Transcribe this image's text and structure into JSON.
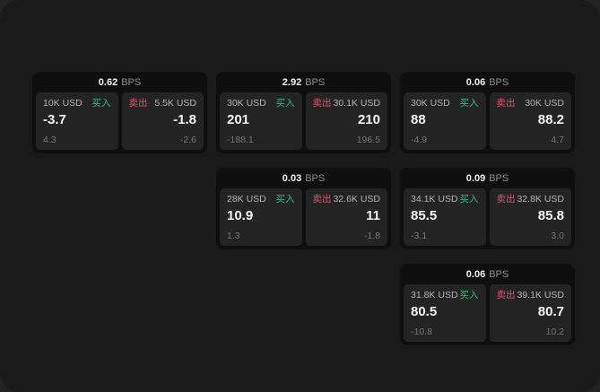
{
  "labels": {
    "buy": "买入",
    "sell": "卖出",
    "bps_suffix": "BPS"
  },
  "colors": {
    "buy": "#2ebd85",
    "sell": "#d8566f",
    "value_text": "#f5f5f5",
    "bps_text": "#8c8c8c",
    "amount_text": "#b3b3b3",
    "muted_text": "#757575",
    "card_bg": "#0f0f0f",
    "panel_bg": "#242424",
    "window_bg": "#1a1a1a",
    "backdrop": "#242424"
  },
  "cards": [
    {
      "row": 1,
      "col": 1,
      "bps": "0.62",
      "buy": {
        "amount": "10K USD",
        "value": "-3.7",
        "sub": "4.3"
      },
      "sell": {
        "amount": "5.5K USD",
        "value": "-1.8",
        "sub": "-2.6"
      }
    },
    {
      "row": 1,
      "col": 2,
      "bps": "2.92",
      "buy": {
        "amount": "30K USD",
        "value": "201",
        "sub": "-188.1"
      },
      "sell": {
        "amount": "30.1K USD",
        "value": "210",
        "sub": "196.5"
      }
    },
    {
      "row": 1,
      "col": 3,
      "bps": "0.06",
      "buy": {
        "amount": "30K USD",
        "value": "88",
        "sub": "-4.9"
      },
      "sell": {
        "amount": "30K USD",
        "value": "88.2",
        "sub": "4.7"
      }
    },
    {
      "row": 2,
      "col": 2,
      "bps": "0.03",
      "buy": {
        "amount": "28K USD",
        "value": "10.9",
        "sub": "1.3"
      },
      "sell": {
        "amount": "32.6K USD",
        "value": "11",
        "sub": "-1.8"
      }
    },
    {
      "row": 2,
      "col": 3,
      "bps": "0.09",
      "buy": {
        "amount": "34.1K USD",
        "value": "85.5",
        "sub": "-3.1"
      },
      "sell": {
        "amount": "32.8K USD",
        "value": "85.8",
        "sub": "3.0"
      }
    },
    {
      "row": 3,
      "col": 3,
      "bps": "0.06",
      "buy": {
        "amount": "31.8K USD",
        "value": "80.5",
        "sub": "-10.8"
      },
      "sell": {
        "amount": "39.1K USD",
        "value": "80.7",
        "sub": "10.2"
      }
    }
  ]
}
